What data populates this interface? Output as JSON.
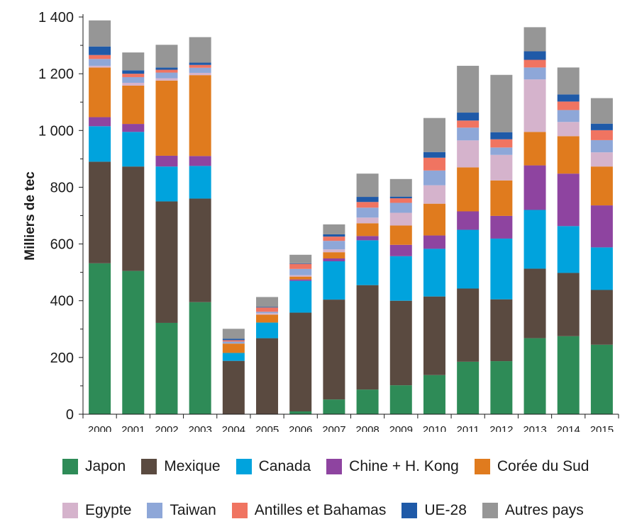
{
  "chart_data": {
    "type": "bar",
    "stacked": true,
    "title": "",
    "xlabel": "",
    "ylabel": "Milliers de tec",
    "ylim": [
      0,
      1400
    ],
    "yticks": [
      0,
      200,
      400,
      600,
      800,
      1000,
      1200,
      1400
    ],
    "ytick_labels": [
      "0",
      "200",
      "400",
      "600",
      "800",
      "1 000",
      "1 200",
      "1 400"
    ],
    "grid": false,
    "legend_position": "bottom",
    "categories": [
      "2000",
      "2001",
      "2002",
      "2003",
      "2004",
      "2005",
      "2006",
      "2007",
      "2008",
      "2009",
      "2010",
      "2011",
      "2012",
      "2013",
      "2014",
      "2015"
    ],
    "series": [
      {
        "name": "Japon",
        "color": "#2e8b57",
        "values": [
          532,
          505,
          322,
          395,
          0,
          0,
          10,
          52,
          87,
          102,
          138,
          185,
          187,
          268,
          275,
          245
        ]
      },
      {
        "name": "Mexique",
        "color": "#5a4a40",
        "values": [
          358,
          368,
          428,
          365,
          188,
          268,
          348,
          352,
          368,
          298,
          277,
          258,
          218,
          245,
          223,
          193
        ]
      },
      {
        "name": "Canada",
        "color": "#00a3dd",
        "values": [
          125,
          122,
          123,
          115,
          28,
          55,
          112,
          135,
          158,
          157,
          168,
          207,
          214,
          207,
          165,
          150
        ]
      },
      {
        "name": "Chine + H. Kong",
        "color": "#8e44a0",
        "values": [
          32,
          28,
          38,
          35,
          0,
          0,
          5,
          10,
          15,
          40,
          47,
          65,
          80,
          157,
          185,
          148
        ]
      },
      {
        "name": "Corée du Sud",
        "color": "#e07b1e",
        "values": [
          175,
          135,
          265,
          285,
          33,
          28,
          10,
          22,
          45,
          68,
          112,
          155,
          125,
          118,
          132,
          137
        ]
      },
      {
        "name": "Egypte",
        "color": "#d5b3cc",
        "values": [
          6,
          10,
          8,
          8,
          0,
          5,
          5,
          10,
          20,
          45,
          65,
          95,
          90,
          185,
          50,
          50
        ]
      },
      {
        "name": "Taiwan",
        "color": "#8ea7d8",
        "values": [
          24,
          20,
          20,
          18,
          7,
          5,
          22,
          30,
          35,
          35,
          52,
          45,
          26,
          42,
          42,
          43
        ]
      },
      {
        "name": "Antilles et Bahamas",
        "color": "#f07461",
        "values": [
          14,
          12,
          10,
          10,
          5,
          15,
          18,
          15,
          20,
          16,
          45,
          25,
          29,
          27,
          30,
          35
        ]
      },
      {
        "name": "UE-28",
        "color": "#1f5aa8",
        "values": [
          30,
          12,
          8,
          8,
          5,
          2,
          2,
          8,
          18,
          6,
          20,
          28,
          25,
          30,
          25,
          23
        ]
      },
      {
        "name": "Autres pays",
        "color": "#969696",
        "values": [
          92,
          63,
          80,
          90,
          35,
          35,
          30,
          35,
          82,
          62,
          120,
          165,
          202,
          85,
          95,
          90
        ]
      }
    ]
  }
}
